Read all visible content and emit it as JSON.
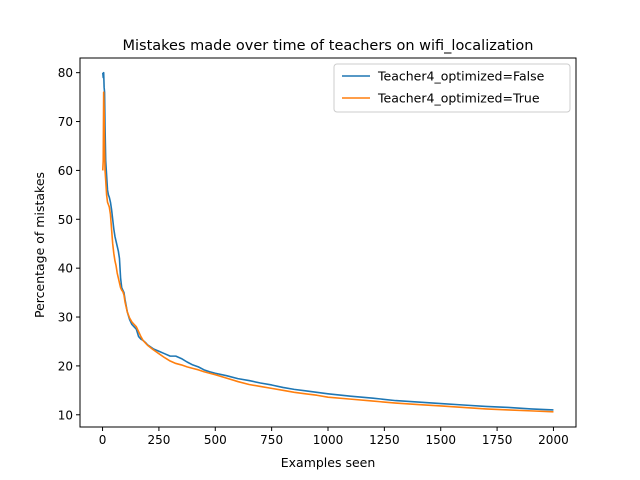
{
  "chart_data": {
    "type": "line",
    "title": "Mistakes made over time of teachers on wifi_localization",
    "xlabel": "Examples seen",
    "ylabel": "Percentage of mistakes",
    "xlim": [
      -100,
      2100
    ],
    "ylim": [
      7.5,
      83
    ],
    "xticks": [
      0,
      250,
      500,
      750,
      1000,
      1250,
      1500,
      1750,
      2000
    ],
    "yticks": [
      10,
      20,
      30,
      40,
      50,
      60,
      70,
      80
    ],
    "grid": false,
    "legend_position": "top-right",
    "series": [
      {
        "name": "Teacher4_optimized=False",
        "color": "#1f77b4",
        "points": [
          [
            1,
            80
          ],
          [
            3,
            79
          ],
          [
            5,
            80
          ],
          [
            7,
            77
          ],
          [
            9,
            76
          ],
          [
            11,
            69
          ],
          [
            14,
            62
          ],
          [
            18,
            59
          ],
          [
            22,
            56
          ],
          [
            26,
            55
          ],
          [
            30,
            54.5
          ],
          [
            35,
            53.5
          ],
          [
            40,
            52
          ],
          [
            45,
            50
          ],
          [
            50,
            48
          ],
          [
            55,
            46.5
          ],
          [
            60,
            45.5
          ],
          [
            65,
            44.5
          ],
          [
            70,
            43.5
          ],
          [
            75,
            42
          ],
          [
            80,
            38
          ],
          [
            85,
            36
          ],
          [
            90,
            35.5
          ],
          [
            95,
            35
          ],
          [
            100,
            33.5
          ],
          [
            110,
            31
          ],
          [
            120,
            29.5
          ],
          [
            130,
            28.5
          ],
          [
            140,
            28
          ],
          [
            150,
            27.5
          ],
          [
            160,
            26
          ],
          [
            170,
            25.5
          ],
          [
            180,
            25.2
          ],
          [
            190,
            24.8
          ],
          [
            200,
            24.3
          ],
          [
            225,
            23.5
          ],
          [
            250,
            23
          ],
          [
            275,
            22.5
          ],
          [
            300,
            22
          ],
          [
            325,
            22
          ],
          [
            350,
            21.5
          ],
          [
            375,
            20.8
          ],
          [
            400,
            20.2
          ],
          [
            425,
            19.8
          ],
          [
            450,
            19.2
          ],
          [
            475,
            18.8
          ],
          [
            500,
            18.5
          ],
          [
            550,
            18
          ],
          [
            600,
            17.4
          ],
          [
            650,
            17
          ],
          [
            700,
            16.5
          ],
          [
            750,
            16.1
          ],
          [
            800,
            15.6
          ],
          [
            850,
            15.2
          ],
          [
            900,
            14.9
          ],
          [
            950,
            14.6
          ],
          [
            1000,
            14.3
          ],
          [
            1100,
            13.8
          ],
          [
            1200,
            13.4
          ],
          [
            1300,
            12.9
          ],
          [
            1400,
            12.6
          ],
          [
            1500,
            12.3
          ],
          [
            1600,
            12
          ],
          [
            1700,
            11.7
          ],
          [
            1800,
            11.5
          ],
          [
            1900,
            11.2
          ],
          [
            2000,
            11
          ]
        ]
      },
      {
        "name": "Teacher4_optimized=True",
        "color": "#ff7f0e",
        "points": [
          [
            1,
            60
          ],
          [
            3,
            62
          ],
          [
            5,
            76
          ],
          [
            7,
            72
          ],
          [
            9,
            64
          ],
          [
            11,
            60
          ],
          [
            14,
            58
          ],
          [
            18,
            55
          ],
          [
            22,
            53.5
          ],
          [
            26,
            53
          ],
          [
            30,
            52.5
          ],
          [
            35,
            51
          ],
          [
            40,
            48
          ],
          [
            45,
            45
          ],
          [
            50,
            43
          ],
          [
            55,
            41.5
          ],
          [
            60,
            40.5
          ],
          [
            65,
            39
          ],
          [
            70,
            38
          ],
          [
            75,
            37
          ],
          [
            80,
            36
          ],
          [
            85,
            35.5
          ],
          [
            90,
            35.2
          ],
          [
            95,
            34.5
          ],
          [
            100,
            33
          ],
          [
            110,
            31
          ],
          [
            120,
            29.8
          ],
          [
            130,
            29
          ],
          [
            140,
            28.5
          ],
          [
            150,
            28
          ],
          [
            160,
            27
          ],
          [
            170,
            26
          ],
          [
            180,
            25.2
          ],
          [
            190,
            24.7
          ],
          [
            200,
            24.2
          ],
          [
            225,
            23.3
          ],
          [
            250,
            22.5
          ],
          [
            275,
            21.7
          ],
          [
            300,
            21
          ],
          [
            325,
            20.5
          ],
          [
            350,
            20.2
          ],
          [
            375,
            19.8
          ],
          [
            400,
            19.5
          ],
          [
            425,
            19.2
          ],
          [
            450,
            18.8
          ],
          [
            475,
            18.5
          ],
          [
            500,
            18.2
          ],
          [
            550,
            17.5
          ],
          [
            600,
            16.8
          ],
          [
            650,
            16.2
          ],
          [
            700,
            15.8
          ],
          [
            750,
            15.4
          ],
          [
            800,
            15
          ],
          [
            850,
            14.6
          ],
          [
            900,
            14.3
          ],
          [
            950,
            14
          ],
          [
            1000,
            13.6
          ],
          [
            1100,
            13.2
          ],
          [
            1200,
            12.8
          ],
          [
            1300,
            12.4
          ],
          [
            1400,
            12.1
          ],
          [
            1500,
            11.8
          ],
          [
            1600,
            11.5
          ],
          [
            1700,
            11.2
          ],
          [
            1800,
            11
          ],
          [
            1900,
            10.8
          ],
          [
            2000,
            10.6
          ]
        ]
      }
    ]
  }
}
